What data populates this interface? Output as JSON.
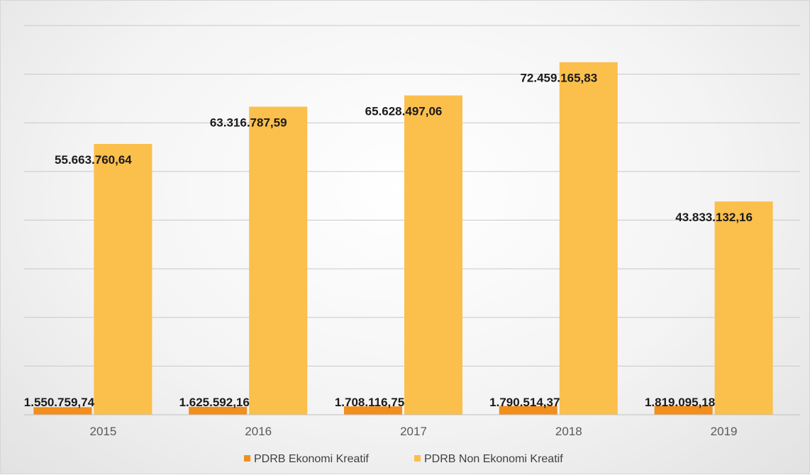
{
  "chart_data": {
    "type": "bar",
    "categories": [
      "2015",
      "2016",
      "2017",
      "2018",
      "2019"
    ],
    "series": [
      {
        "name": "PDRB Ekonomi Kreatif",
        "color": "#f28e1c",
        "values": [
          1550759.74,
          1625592.16,
          1708116.75,
          1790514.37,
          1819095.18
        ],
        "labels": [
          "1.550.759,74",
          "1.625.592,16",
          "1.708.116,75",
          "1.790.514,37",
          "1.819.095,18"
        ]
      },
      {
        "name": "PDRB Non Ekonomi Kreatif",
        "color": "#fbbf4c",
        "values": [
          55663760.64,
          63316787.59,
          65628497.06,
          72459165.83,
          43833132.16
        ],
        "labels": [
          "55.663.760,64",
          "63.316.787,59",
          "65.628.497,06",
          "72.459.165,83",
          "43.833.132,16"
        ]
      }
    ],
    "ylim": [
      0,
      80000000
    ],
    "grid": true,
    "y_tick_labels_shown": false,
    "legend_position": "bottom"
  }
}
